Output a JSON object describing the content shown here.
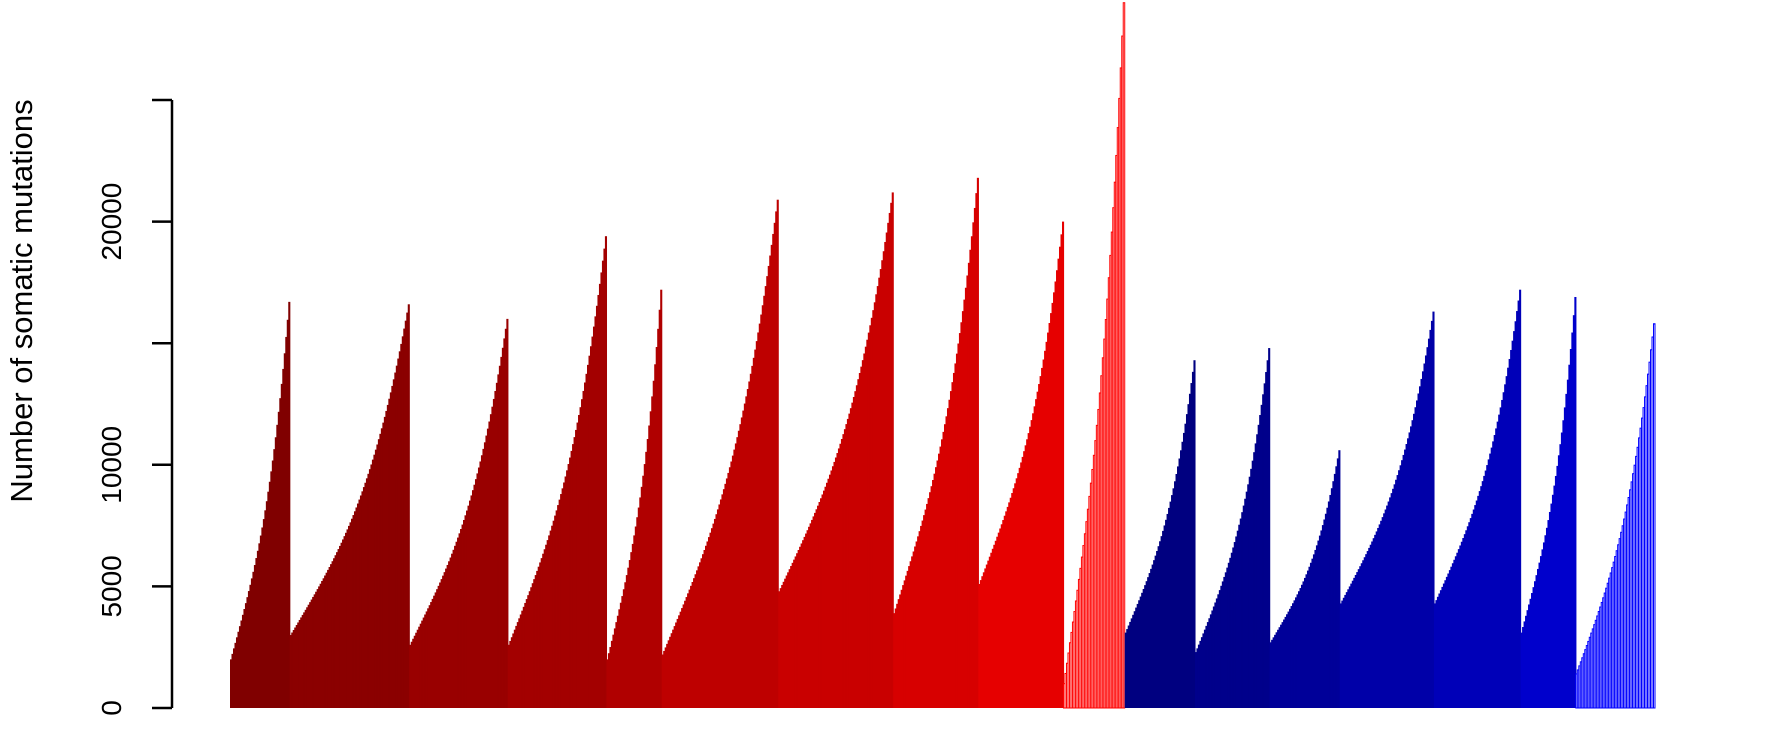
{
  "chart_data": {
    "type": "bar",
    "title": "",
    "xlabel": "",
    "ylabel": "Number of somatic mutations",
    "ylim": [
      0,
      25000
    ],
    "yticks": [
      0,
      5000,
      10000,
      15000,
      20000,
      25000
    ],
    "ytick_labels": [
      "0",
      "5000",
      "10000",
      "",
      "20000",
      ""
    ],
    "grid": false,
    "legend": "none",
    "bar_gap": 0,
    "groups": [
      {
        "color": "#800000",
        "n": 40,
        "min": 2000,
        "max": 16700
      },
      {
        "color": "#8b0000",
        "n": 80,
        "min": 3000,
        "max": 16600
      },
      {
        "color": "#990000",
        "n": 66,
        "min": 2600,
        "max": 16000
      },
      {
        "color": "#a30000",
        "n": 66,
        "min": 2600,
        "max": 19400
      },
      {
        "color": "#b00000",
        "n": 37,
        "min": 2000,
        "max": 17200
      },
      {
        "color": "#be0000",
        "n": 78,
        "min": 2200,
        "max": 20900
      },
      {
        "color": "#c90000",
        "n": 77,
        "min": 4800,
        "max": 21200
      },
      {
        "color": "#d70000",
        "n": 57,
        "min": 3900,
        "max": 21800
      },
      {
        "color": "#e60000",
        "n": 57,
        "min": 5100,
        "max": 20000
      },
      {
        "color": "#ff0000",
        "n": 41,
        "min": 1000,
        "max": 29000,
        "outlined": true
      },
      {
        "color": "#000080",
        "n": 47,
        "min": 3100,
        "max": 14300
      },
      {
        "color": "#00008b",
        "n": 50,
        "min": 2300,
        "max": 14800
      },
      {
        "color": "#000099",
        "n": 47,
        "min": 2700,
        "max": 10600
      },
      {
        "color": "#0000a8",
        "n": 63,
        "min": 4300,
        "max": 16300
      },
      {
        "color": "#0000b8",
        "n": 58,
        "min": 4300,
        "max": 17200
      },
      {
        "color": "#0000cc",
        "n": 37,
        "min": 3100,
        "max": 16900
      },
      {
        "color": "#0000ff",
        "n": 53,
        "min": 1400,
        "max": 15800,
        "outlined": true
      }
    ]
  }
}
